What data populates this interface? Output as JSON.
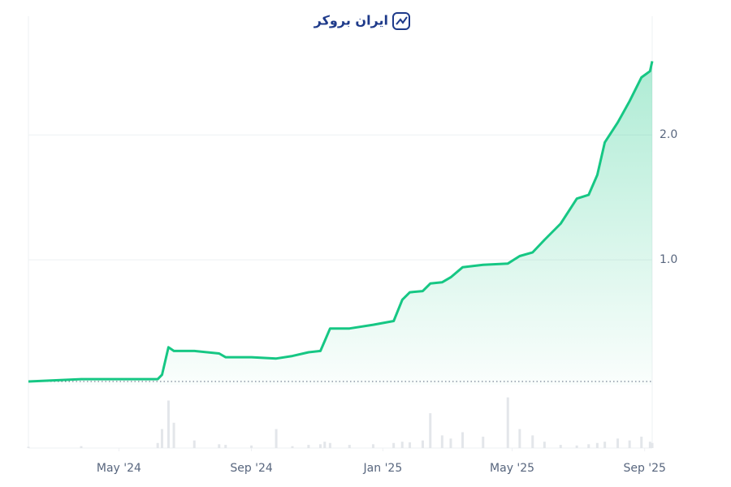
{
  "chart_data": {
    "type": "line",
    "watermark": "ایران بروکر",
    "x": [
      "2024-02-07",
      "2024-03-27",
      "2024-06-06",
      "2024-06-10",
      "2024-06-16",
      "2024-06-21",
      "2024-07-10",
      "2024-08-02",
      "2024-08-08",
      "2024-09-01",
      "2024-09-24",
      "2024-10-09",
      "2024-10-24",
      "2024-11-04",
      "2024-11-08",
      "2024-11-13",
      "2024-12-01",
      "2024-12-23",
      "2025-01-11",
      "2025-01-19",
      "2025-01-26",
      "2025-02-07",
      "2025-02-14",
      "2025-02-25",
      "2025-03-05",
      "2025-03-16",
      "2025-04-04",
      "2025-04-27",
      "2025-05-08",
      "2025-05-20",
      "2025-05-31",
      "2025-06-15",
      "2025-06-30",
      "2025-07-11",
      "2025-07-19",
      "2025-07-26",
      "2025-08-07",
      "2025-08-18",
      "2025-08-29",
      "2025-09-06",
      "2025-09-08"
    ],
    "series": [
      {
        "color": "#16c784",
        "values": [
          0.026,
          0.045,
          0.045,
          0.08,
          0.3,
          0.27,
          0.27,
          0.25,
          0.22,
          0.22,
          0.21,
          0.23,
          0.26,
          0.27,
          0.35,
          0.45,
          0.45,
          0.48,
          0.51,
          0.68,
          0.74,
          0.75,
          0.81,
          0.82,
          0.86,
          0.94,
          0.96,
          0.97,
          1.03,
          1.06,
          1.16,
          1.29,
          1.49,
          1.52,
          1.68,
          1.94,
          2.1,
          2.27,
          2.46,
          2.51,
          2.59
        ]
      }
    ],
    "volume": [
      2,
      3,
      8,
      30,
      75,
      40,
      12,
      6,
      5,
      4,
      30,
      3,
      5,
      6,
      10,
      8,
      5,
      6,
      8,
      10,
      9,
      12,
      55,
      20,
      15,
      25,
      18,
      80,
      30,
      20,
      10,
      5,
      4,
      6,
      8,
      10,
      15,
      12,
      18,
      10,
      8
    ],
    "volume_lim": [
      0,
      100
    ],
    "xlim": [
      "2024-02-07",
      "2025-09-08"
    ],
    "xticks": [
      {
        "value": "2024-05-01",
        "label": "May '24"
      },
      {
        "value": "2024-09-01",
        "label": "Sep '24"
      },
      {
        "value": "2025-01-01",
        "label": "Jan '25"
      },
      {
        "value": "2025-05-01",
        "label": "May '25"
      },
      {
        "value": "2025-09-01",
        "label": "Sep '25"
      }
    ],
    "ylim": [
      0,
      2.95
    ],
    "yticks": [
      {
        "value": 1,
        "label": "1.0"
      },
      {
        "value": 2,
        "label": "2.0"
      }
    ],
    "grid": true
  }
}
